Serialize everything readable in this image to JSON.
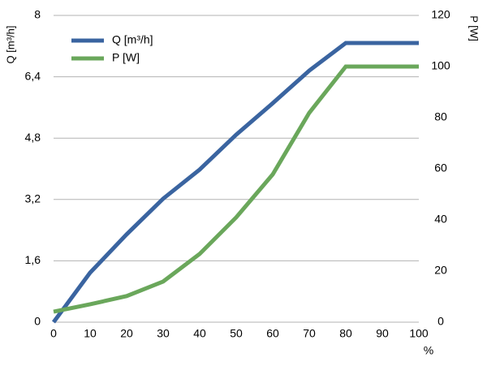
{
  "chart_data": {
    "type": "line",
    "xlabel": "%",
    "ylabel": "Q [m³/h]",
    "y2label": "P [W]",
    "x": [
      0,
      10,
      20,
      30,
      40,
      50,
      60,
      70,
      80,
      90,
      100
    ],
    "series": [
      {
        "name": "Q [m³/h]",
        "color": "#3a64a0",
        "values": [
          0,
          1.29,
          2.29,
          3.22,
          3.98,
          4.89,
          5.71,
          6.56,
          7.28,
          7.28,
          7.28
        ]
      },
      {
        "name": "P [W]",
        "color": "#6aa75b",
        "axis": "y2",
        "values": [
          4.1,
          7,
          10.2,
          15.9,
          26.7,
          41,
          57.8,
          81.9,
          100,
          100,
          100
        ]
      }
    ],
    "xlim": [
      0,
      100
    ],
    "xticks": [
      0,
      10,
      20,
      30,
      40,
      50,
      60,
      70,
      80,
      90,
      100
    ],
    "ylim": [
      0,
      8
    ],
    "yticks": [
      0,
      {
        "value": 1.6,
        "label": "1,6"
      },
      {
        "value": 3.2,
        "label": "3,2"
      },
      {
        "value": 4.8,
        "label": "4,8"
      },
      {
        "value": 6.4,
        "label": "6,4"
      },
      8
    ],
    "y2lim": [
      0,
      120
    ],
    "y2ticks": [
      0,
      20,
      40,
      60,
      80,
      100,
      120
    ],
    "grid": true,
    "legend": "top-left"
  }
}
